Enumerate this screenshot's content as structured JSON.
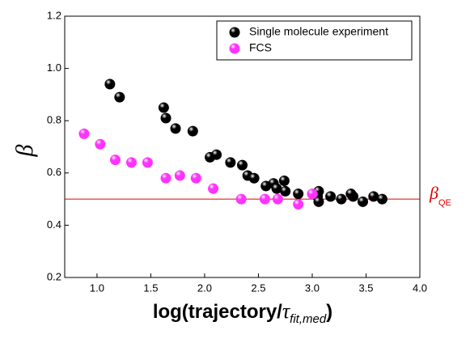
{
  "chart_data": {
    "type": "scatter",
    "y_label": "β",
    "x_label": {
      "main": "log(trajectory/",
      "symbol": "τ",
      "subscript": "fit,med",
      "close": ")"
    },
    "xlim": [
      0.7,
      4.0
    ],
    "xticks": [
      1.0,
      1.5,
      2.0,
      2.5,
      3.0,
      3.5,
      4.0
    ],
    "ylim": [
      0.2,
      1.2
    ],
    "yticks": [
      0.2,
      0.4,
      0.6,
      0.8,
      1.0,
      1.2
    ],
    "legend": "upper right",
    "reference_line": {
      "value": 0.5,
      "color": "#e00000",
      "label": "β",
      "subscript": "QE"
    },
    "series": [
      {
        "name": "Single molecule experiment",
        "color": "#000000",
        "x": [
          1.12,
          1.21,
          1.62,
          1.64,
          1.73,
          1.89,
          2.05,
          2.11,
          2.24,
          2.35,
          2.4,
          2.46,
          2.57,
          2.64,
          2.67,
          2.74,
          2.75,
          2.87,
          3.06,
          3.05,
          3.06,
          3.17,
          3.27,
          3.38,
          3.36,
          3.47,
          3.57,
          3.65
        ],
        "values": [
          0.94,
          0.89,
          0.85,
          0.81,
          0.77,
          0.76,
          0.66,
          0.67,
          0.64,
          0.63,
          0.59,
          0.58,
          0.55,
          0.56,
          0.54,
          0.57,
          0.53,
          0.52,
          0.53,
          0.51,
          0.49,
          0.51,
          0.5,
          0.51,
          0.52,
          0.49,
          0.51,
          0.5
        ]
      },
      {
        "name": "FCS",
        "color": "#ff33ff",
        "x": [
          0.88,
          1.03,
          1.17,
          1.32,
          1.47,
          1.64,
          1.77,
          1.92,
          2.08,
          2.34,
          2.56,
          2.68,
          2.87,
          3.0
        ],
        "values": [
          0.75,
          0.71,
          0.65,
          0.64,
          0.64,
          0.58,
          0.59,
          0.58,
          0.54,
          0.5,
          0.5,
          0.5,
          0.48,
          0.52
        ]
      }
    ]
  }
}
